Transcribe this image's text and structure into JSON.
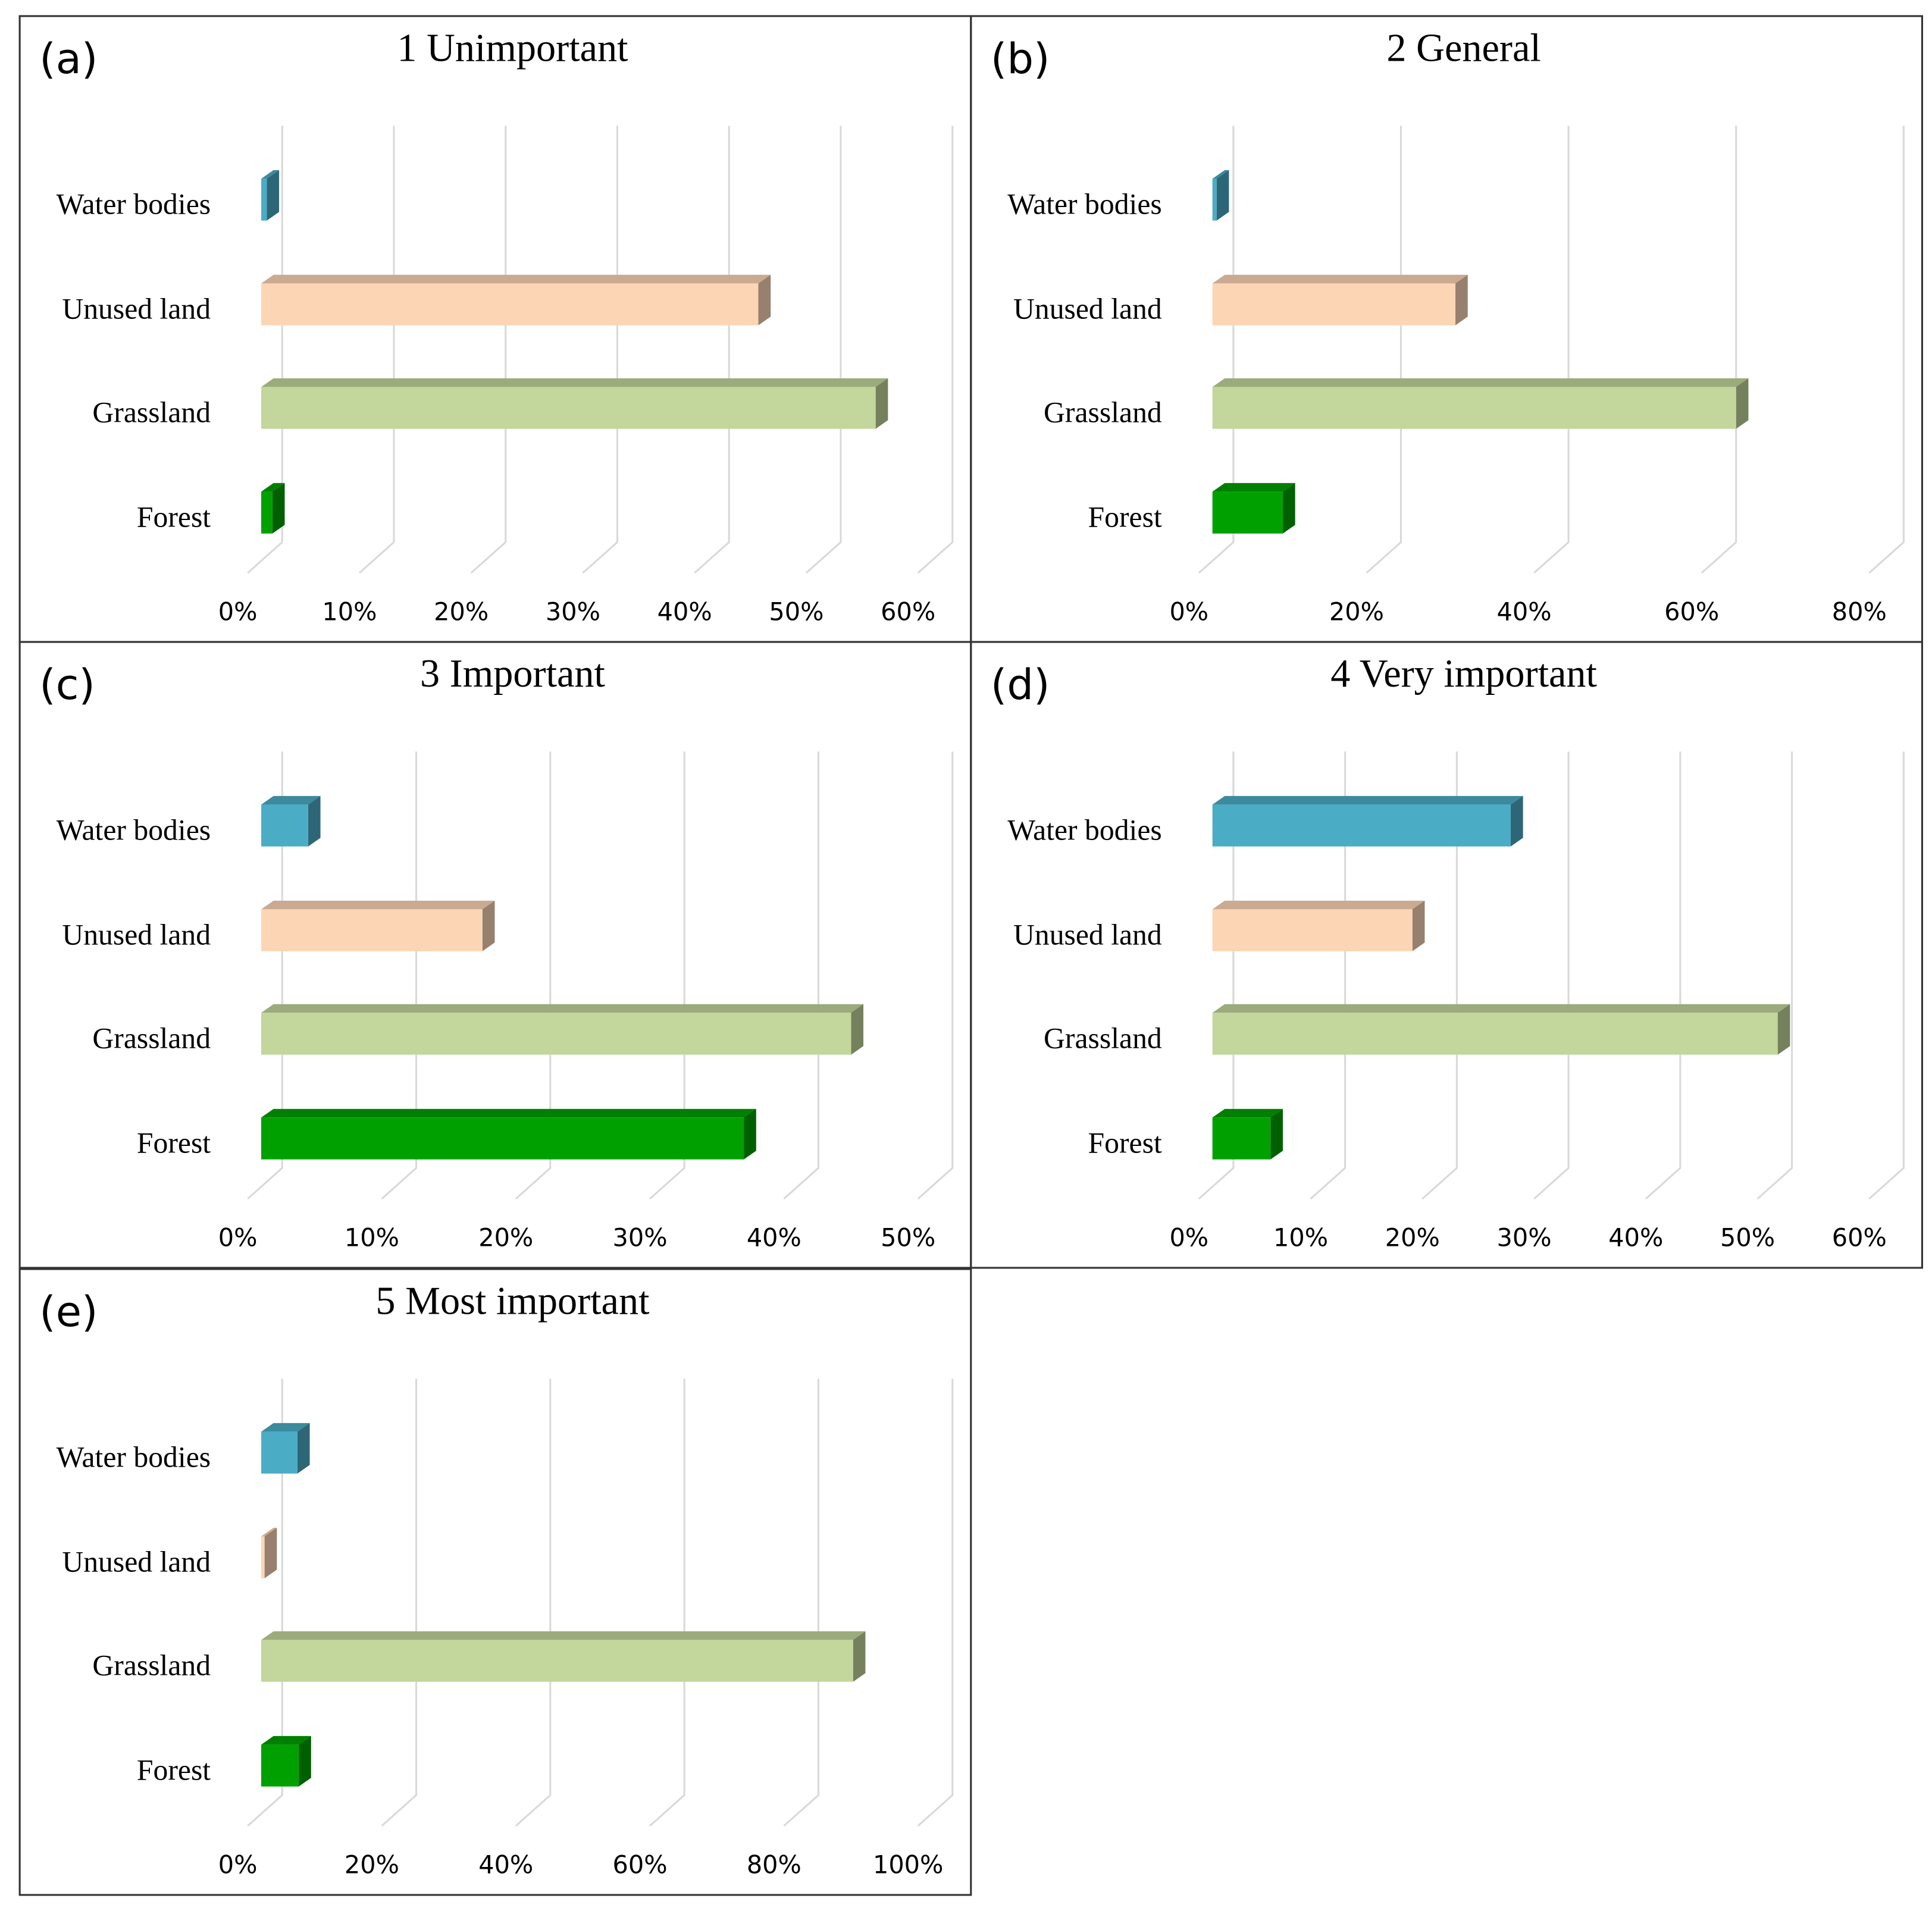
{
  "chart_data": [
    {
      "type": "bar",
      "panel": "(a)",
      "title": "1 Unimportant",
      "categories": [
        "Water bodies",
        "Unused land",
        "Grassland",
        "Forest"
      ],
      "values": [
        0.5,
        44.5,
        55,
        1
      ],
      "colors": [
        "#4bacc6",
        "#fcd5b5",
        "#c3d69b",
        "#00a000"
      ],
      "xlim": [
        0,
        60
      ],
      "xticks": [
        {
          "value": 0,
          "label": "0%"
        },
        {
          "value": 10,
          "label": "10%"
        },
        {
          "value": 20,
          "label": "20%"
        },
        {
          "value": 30,
          "label": "30%"
        },
        {
          "value": 40,
          "label": "40%"
        },
        {
          "value": 50,
          "label": "50%"
        },
        {
          "value": 60,
          "label": "60%"
        }
      ],
      "grid": true
    },
    {
      "type": "bar",
      "panel": "(b)",
      "title": "2 General",
      "categories": [
        "Water bodies",
        "Unused land",
        "Grassland",
        "Forest"
      ],
      "values": [
        0.5,
        29,
        62.5,
        8.4
      ],
      "colors": [
        "#4bacc6",
        "#fcd5b5",
        "#c3d69b",
        "#00a000"
      ],
      "xlim": [
        0,
        80
      ],
      "xticks": [
        {
          "value": 0,
          "label": "0%"
        },
        {
          "value": 20,
          "label": "20%"
        },
        {
          "value": 40,
          "label": "40%"
        },
        {
          "value": 60,
          "label": "60%"
        },
        {
          "value": 80,
          "label": "80%"
        }
      ],
      "grid": true
    },
    {
      "type": "bar",
      "panel": "(c)",
      "title": "3 Important",
      "categories": [
        "Water bodies",
        "Unused land",
        "Grassland",
        "Forest"
      ],
      "values": [
        3.5,
        16.5,
        44,
        36
      ],
      "colors": [
        "#4bacc6",
        "#fcd5b5",
        "#c3d69b",
        "#00a000"
      ],
      "xlim": [
        0,
        50
      ],
      "xticks": [
        {
          "value": 0,
          "label": "0%"
        },
        {
          "value": 10,
          "label": "10%"
        },
        {
          "value": 20,
          "label": "20%"
        },
        {
          "value": 30,
          "label": "30%"
        },
        {
          "value": 40,
          "label": "40%"
        },
        {
          "value": 50,
          "label": "50%"
        }
      ],
      "grid": true
    },
    {
      "type": "bar",
      "panel": "(d)",
      "title": "4 Very important",
      "categories": [
        "Water bodies",
        "Unused land",
        "Grassland",
        "Forest"
      ],
      "values": [
        26.7,
        17.9,
        50.6,
        5.2
      ],
      "colors": [
        "#4bacc6",
        "#fcd5b5",
        "#c3d69b",
        "#00a000"
      ],
      "xlim": [
        0,
        60
      ],
      "xticks": [
        {
          "value": 0,
          "label": "0%"
        },
        {
          "value": 10,
          "label": "10%"
        },
        {
          "value": 20,
          "label": "20%"
        },
        {
          "value": 30,
          "label": "30%"
        },
        {
          "value": 40,
          "label": "40%"
        },
        {
          "value": 50,
          "label": "50%"
        },
        {
          "value": 60,
          "label": "60%"
        }
      ],
      "grid": true
    },
    {
      "type": "bar",
      "panel": "(e)",
      "title": "5 Most important",
      "categories": [
        "Water bodies",
        "Unused land",
        "Grassland",
        "Forest"
      ],
      "values": [
        5.4,
        0.5,
        88.3,
        5.6
      ],
      "colors": [
        "#4bacc6",
        "#fcd5b5",
        "#c3d69b",
        "#00a000"
      ],
      "xlim": [
        0,
        100
      ],
      "xticks": [
        {
          "value": 0,
          "label": "0%"
        },
        {
          "value": 20,
          "label": "20%"
        },
        {
          "value": 40,
          "label": "40%"
        },
        {
          "value": 60,
          "label": "60%"
        },
        {
          "value": 80,
          "label": "80%"
        },
        {
          "value": 100,
          "label": "100%"
        }
      ],
      "grid": true
    }
  ]
}
